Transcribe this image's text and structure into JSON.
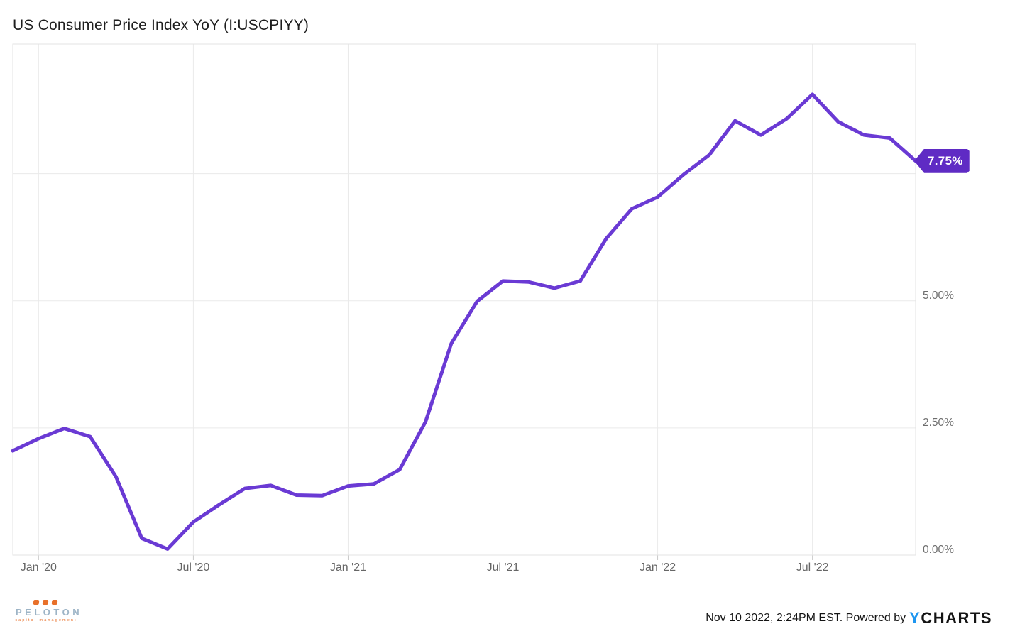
{
  "header": {
    "title": "US Consumer Price Index YoY (I:USCPIYY)"
  },
  "chart_data": {
    "type": "line",
    "title": "US Consumer Price Index YoY (I:USCPIYY)",
    "x": [
      "Nov 2019",
      "Dec 2019",
      "Jan 2020",
      "Feb 2020",
      "Mar 2020",
      "Apr 2020",
      "May 2020",
      "Jun 2020",
      "Jul 2020",
      "Aug 2020",
      "Sep 2020",
      "Oct 2020",
      "Nov 2020",
      "Dec 2020",
      "Jan 2021",
      "Feb 2021",
      "Mar 2021",
      "Apr 2021",
      "May 2021",
      "Jun 2021",
      "Jul 2021",
      "Aug 2021",
      "Sep 2021",
      "Oct 2021",
      "Nov 2021",
      "Dec 2021",
      "Jan 2022",
      "Feb 2022",
      "Mar 2022",
      "Apr 2022",
      "May 2022",
      "Jun 2022",
      "Jul 2022",
      "Aug 2022",
      "Sep 2022",
      "Oct 2022"
    ],
    "series": [
      {
        "name": "US Consumer Price Index YoY",
        "values": [
          2.05,
          2.29,
          2.49,
          2.33,
          1.54,
          0.33,
          0.12,
          0.65,
          0.99,
          1.31,
          1.37,
          1.18,
          1.17,
          1.36,
          1.4,
          1.68,
          2.62,
          4.16,
          4.99,
          5.39,
          5.37,
          5.25,
          5.39,
          6.22,
          6.81,
          7.04,
          7.48,
          7.87,
          8.54,
          8.26,
          8.58,
          9.06,
          8.52,
          8.26,
          8.2,
          7.75
        ]
      }
    ],
    "x_tick_labels": [
      "Jan '20",
      "Jul '20",
      "Jan '21",
      "Jul '21",
      "Jan '22",
      "Jul '22"
    ],
    "x_tick_indices": [
      1,
      7,
      13,
      19,
      25,
      31
    ],
    "y_ticks": [
      {
        "value": 0.0,
        "label": "0.00%"
      },
      {
        "value": 2.5,
        "label": "2.50%"
      },
      {
        "value": 5.0,
        "label": "5.00%"
      },
      {
        "value": 7.5,
        "label": "7.50%"
      }
    ],
    "ylim": [
      0,
      10.05
    ],
    "grid": true,
    "legend_position": "none",
    "last_value": 7.75,
    "last_value_label": "7.75%",
    "colors": {
      "line": "#6A3AD4",
      "badge": "#5F2BC4",
      "gridline": "#eaeaea",
      "axis_line": "#c9c9c9",
      "plot_border": "#e3e3e3",
      "tick_text": "#6d6d6d"
    }
  },
  "footer": {
    "peloton_logo": {
      "name": "PELOTON",
      "subtitle": "capital management",
      "squares": 3,
      "name_color": "#9DB4C6",
      "accent_color": "#E8702A"
    },
    "timestamp": "Nov 10 2022, 2:24PM EST. Powered by",
    "ycharts_logo": {
      "y": "Y",
      "rest": "CHARTS",
      "y_color": "#1E96F0"
    }
  }
}
